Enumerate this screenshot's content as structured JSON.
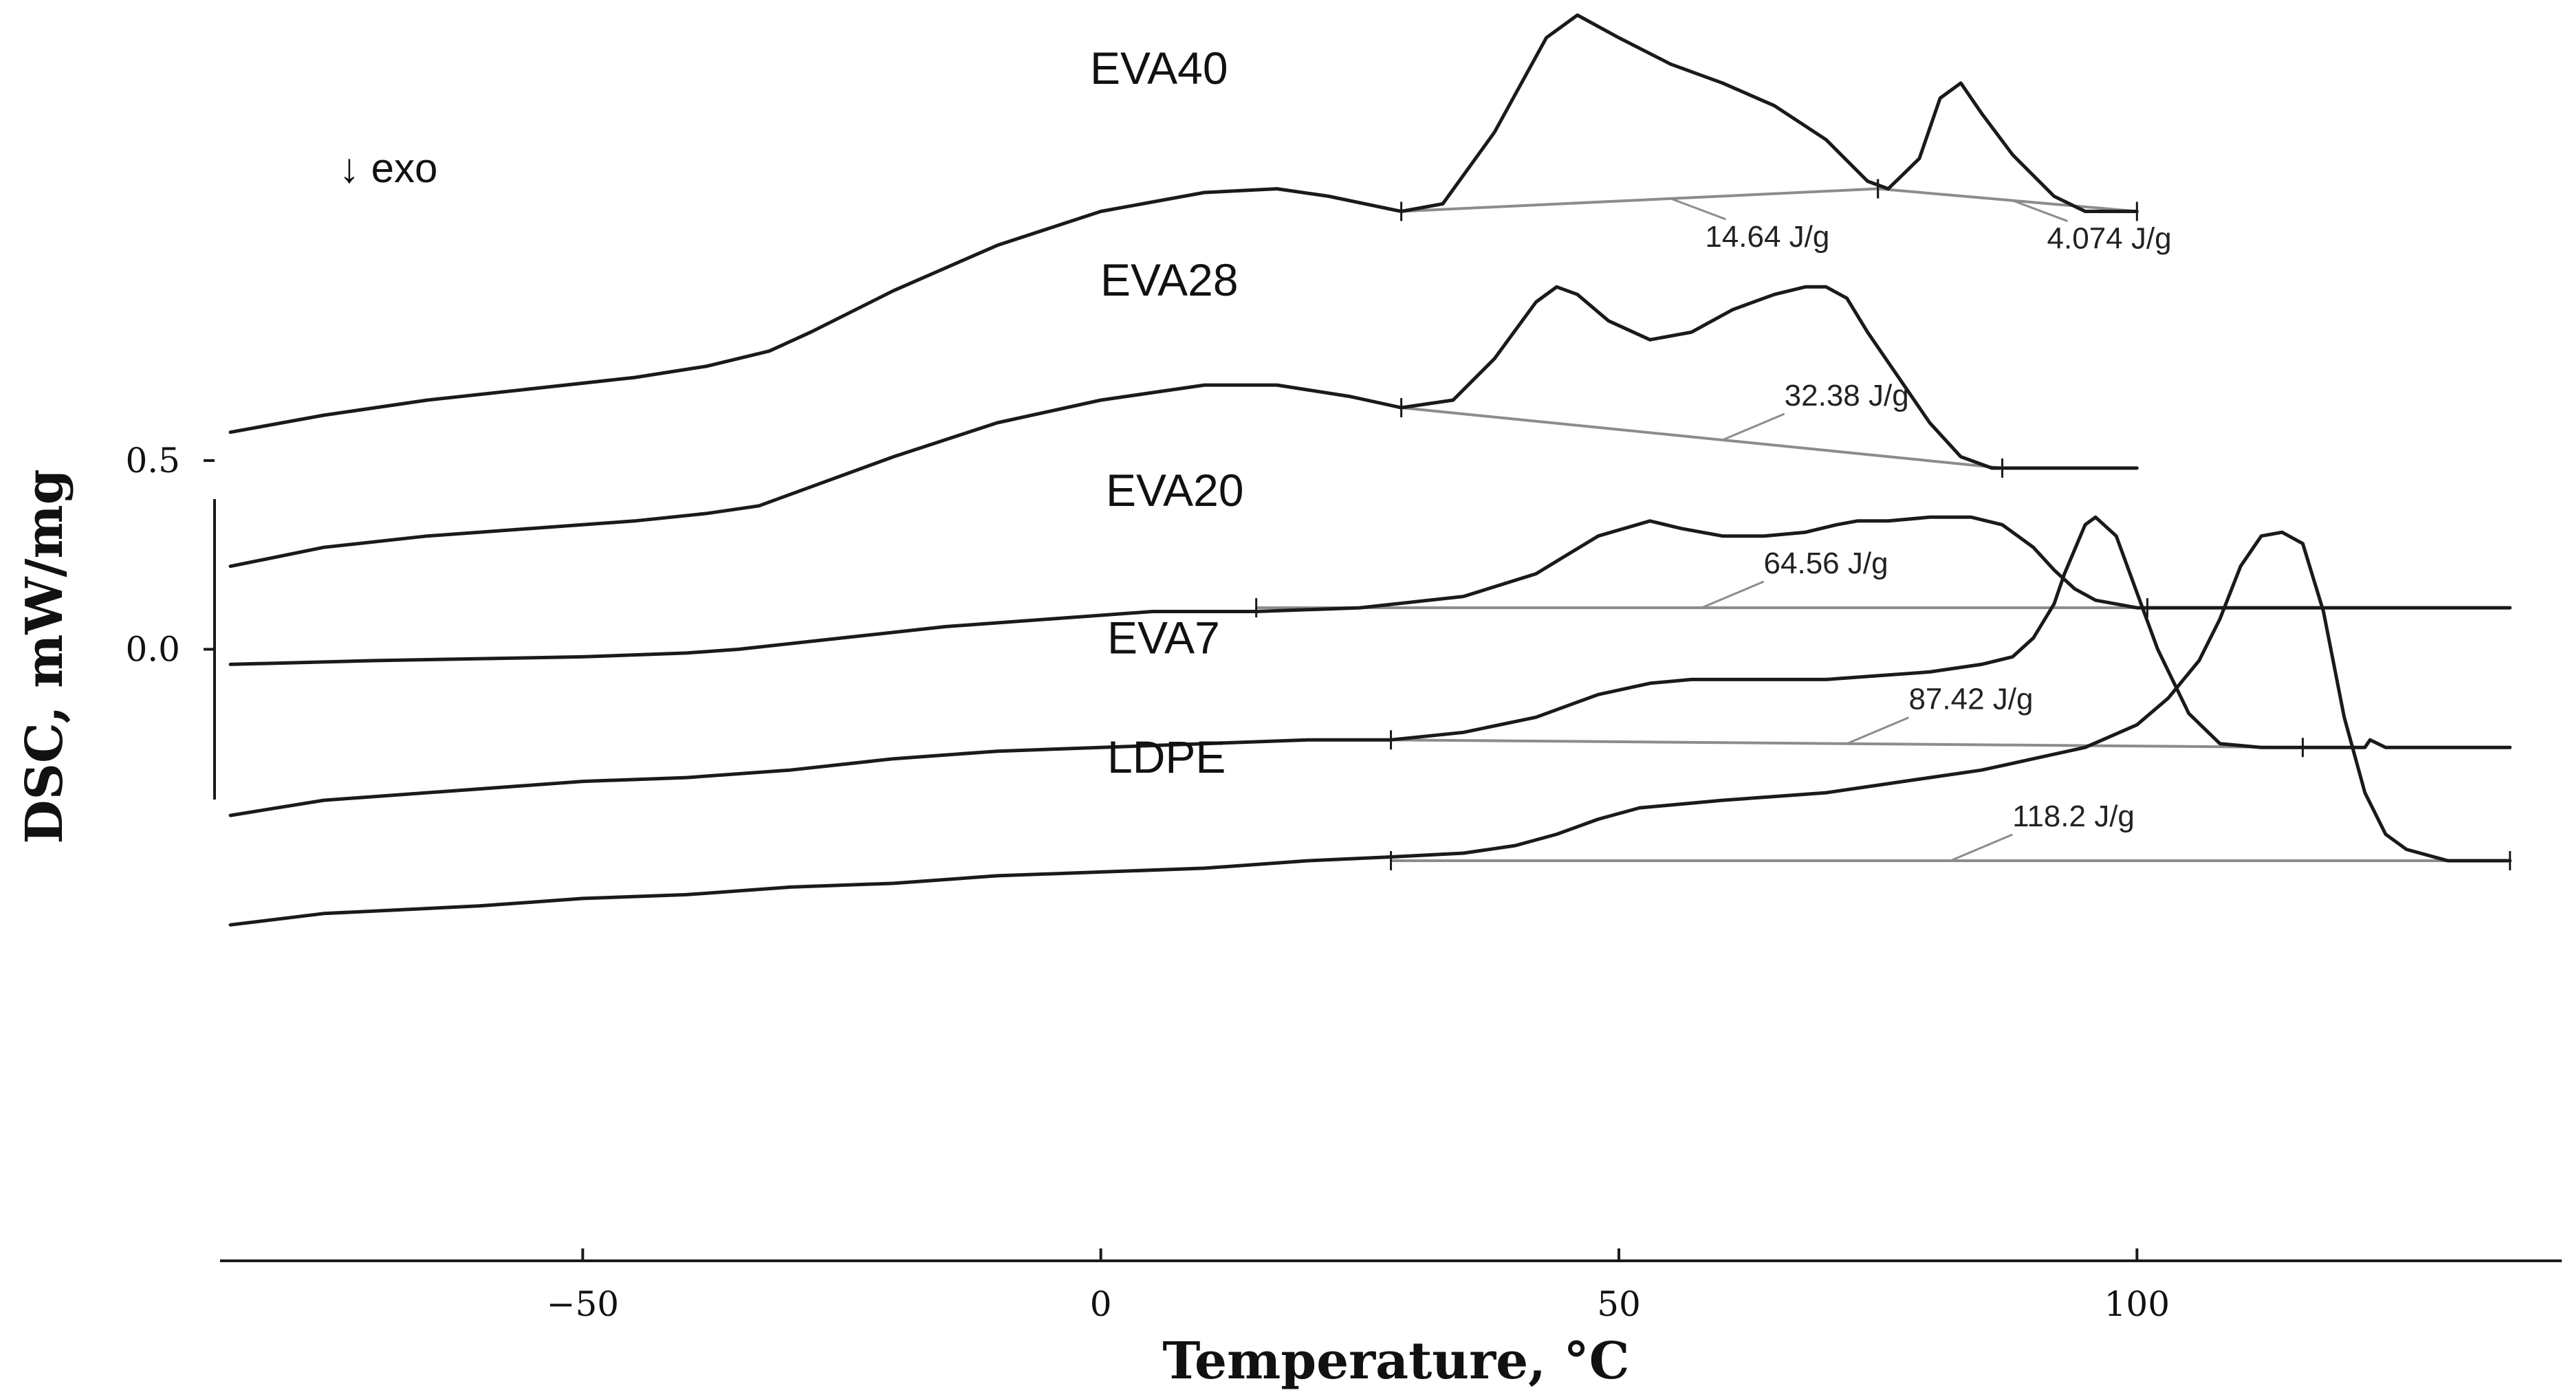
{
  "chart_data": {
    "type": "line",
    "title": "",
    "xlabel": "Temperature, °C",
    "ylabel": "DSC, mW/mg",
    "exo_label": "↓ exo",
    "xlim": [
      -85,
      140
    ],
    "xticks": [
      -50,
      0,
      50,
      100
    ],
    "xtick_labels": [
      "−50",
      "0",
      "50",
      "100"
    ],
    "ylim": [
      -1.62,
      1.72
    ],
    "yticks": [
      0.0,
      0.5
    ],
    "ytick_labels": [
      "0.0",
      "0.5"
    ],
    "grid": false,
    "series": [
      {
        "name": "EVA40",
        "x": [
          -84,
          -75,
          -65,
          -55,
          -45,
          -38,
          -32,
          -28,
          -20,
          -10,
          0,
          10,
          17,
          22,
          29,
          33,
          38,
          43,
          46,
          50,
          55,
          60,
          65,
          70,
          74,
          76,
          79,
          81,
          83,
          85,
          88,
          92,
          95,
          100
        ],
        "y": [
          0.575,
          0.62,
          0.66,
          0.69,
          0.72,
          0.75,
          0.79,
          0.84,
          0.95,
          1.07,
          1.16,
          1.21,
          1.22,
          1.2,
          1.16,
          1.18,
          1.37,
          1.62,
          1.68,
          1.62,
          1.55,
          1.5,
          1.44,
          1.35,
          1.24,
          1.22,
          1.3,
          1.46,
          1.5,
          1.42,
          1.31,
          1.2,
          1.16,
          1.16
        ],
        "baselines": [
          {
            "x": [
              29,
              75
            ],
            "y": [
              1.16,
              1.22
            ]
          },
          {
            "x": [
              75,
              100
            ],
            "y": [
              1.22,
              1.16
            ]
          }
        ],
        "enthalpies": [
          {
            "label": "14.64 J/g",
            "ref_x": 55
          },
          {
            "label": "4.074 J/g",
            "ref_x": 88
          }
        ]
      },
      {
        "name": "EVA28",
        "x": [
          -84,
          -75,
          -65,
          -55,
          -45,
          -38,
          -33,
          -28,
          -20,
          -10,
          0,
          10,
          17,
          24,
          29,
          34,
          38,
          42,
          44,
          46,
          49,
          53,
          57,
          61,
          65,
          68,
          70,
          72,
          74,
          77,
          80,
          83,
          86,
          90,
          95,
          100
        ],
        "y": [
          0.22,
          0.27,
          0.3,
          0.32,
          0.34,
          0.36,
          0.38,
          0.43,
          0.51,
          0.6,
          0.66,
          0.7,
          0.7,
          0.67,
          0.64,
          0.66,
          0.77,
          0.92,
          0.96,
          0.94,
          0.87,
          0.82,
          0.84,
          0.9,
          0.94,
          0.96,
          0.96,
          0.93,
          0.84,
          0.72,
          0.6,
          0.51,
          0.48,
          0.48,
          0.48,
          0.48
        ],
        "baselines": [
          {
            "x": [
              29,
              87
            ],
            "y": [
              0.64,
              0.48
            ]
          }
        ],
        "enthalpies": [
          {
            "label": "32.38 J/g",
            "ref_x": 60
          }
        ]
      },
      {
        "name": "EVA20",
        "x": [
          -84,
          -70,
          -50,
          -40,
          -35,
          -25,
          -15,
          -5,
          5,
          15,
          25,
          35,
          42,
          48,
          53,
          56,
          60,
          64,
          68,
          71,
          73,
          76,
          80,
          84,
          87,
          90,
          92,
          94,
          96,
          98,
          100,
          105,
          110,
          120,
          130,
          136
        ],
        "y": [
          -0.04,
          -0.03,
          -0.02,
          -0.01,
          0.0,
          0.03,
          0.06,
          0.08,
          0.1,
          0.1,
          0.11,
          0.14,
          0.2,
          0.3,
          0.34,
          0.32,
          0.3,
          0.3,
          0.31,
          0.33,
          0.34,
          0.34,
          0.35,
          0.35,
          0.33,
          0.27,
          0.21,
          0.16,
          0.13,
          0.12,
          0.11,
          0.11,
          0.11,
          0.11,
          0.11,
          0.11
        ],
        "baselines": [
          {
            "x": [
              15,
              101
            ],
            "y": [
              0.11,
              0.11
            ]
          }
        ],
        "enthalpies": [
          {
            "label": "64.56 J/g",
            "ref_x": 58
          }
        ]
      },
      {
        "name": "EVA7",
        "x": [
          -84,
          -75,
          -60,
          -50,
          -40,
          -30,
          -20,
          -10,
          0,
          10,
          20,
          28,
          35,
          42,
          48,
          53,
          57,
          60,
          65,
          70,
          75,
          80,
          85,
          88,
          90,
          92,
          93,
          95,
          96,
          98,
          100,
          102,
          105,
          108,
          112,
          116,
          120,
          122,
          122.5,
          124,
          130,
          136
        ],
        "y": [
          -0.44,
          -0.4,
          -0.37,
          -0.35,
          -0.34,
          -0.32,
          -0.29,
          -0.27,
          -0.26,
          -0.25,
          -0.24,
          -0.24,
          -0.22,
          -0.18,
          -0.12,
          -0.09,
          -0.08,
          -0.08,
          -0.08,
          -0.08,
          -0.07,
          -0.06,
          -0.04,
          -0.02,
          0.03,
          0.12,
          0.2,
          0.33,
          0.35,
          0.3,
          0.15,
          0.0,
          -0.17,
          -0.25,
          -0.26,
          -0.26,
          -0.26,
          -0.26,
          -0.24,
          -0.26,
          -0.26,
          -0.26
        ],
        "baselines": [
          {
            "x": [
              28,
              116
            ],
            "y": [
              -0.24,
              -0.26
            ]
          }
        ],
        "enthalpies": [
          {
            "label": "87.42 J/g",
            "ref_x": 72
          }
        ]
      },
      {
        "name": "LDPE",
        "x": [
          -84,
          -75,
          -60,
          -50,
          -40,
          -30,
          -20,
          -10,
          0,
          10,
          20,
          28,
          35,
          40,
          44,
          48,
          52,
          56,
          60,
          65,
          70,
          75,
          80,
          85,
          90,
          95,
          100,
          103,
          106,
          108,
          110,
          112,
          114,
          116,
          118,
          120,
          122,
          124,
          126,
          130,
          136
        ],
        "y": [
          -0.73,
          -0.7,
          -0.68,
          -0.66,
          -0.65,
          -0.63,
          -0.62,
          -0.6,
          -0.59,
          -0.58,
          -0.56,
          -0.55,
          -0.54,
          -0.52,
          -0.49,
          -0.45,
          -0.42,
          -0.41,
          -0.4,
          -0.39,
          -0.38,
          -0.36,
          -0.34,
          -0.32,
          -0.29,
          -0.26,
          -0.2,
          -0.13,
          -0.03,
          0.08,
          0.22,
          0.3,
          0.31,
          0.28,
          0.1,
          -0.18,
          -0.38,
          -0.49,
          -0.53,
          -0.56,
          -0.56
        ],
        "baselines": [
          {
            "x": [
              28,
              136
            ],
            "y": [
              -0.56,
              -0.56
            ]
          }
        ],
        "enthalpies": [
          {
            "label": "118.2 J/g",
            "ref_x": 82
          }
        ]
      }
    ]
  }
}
